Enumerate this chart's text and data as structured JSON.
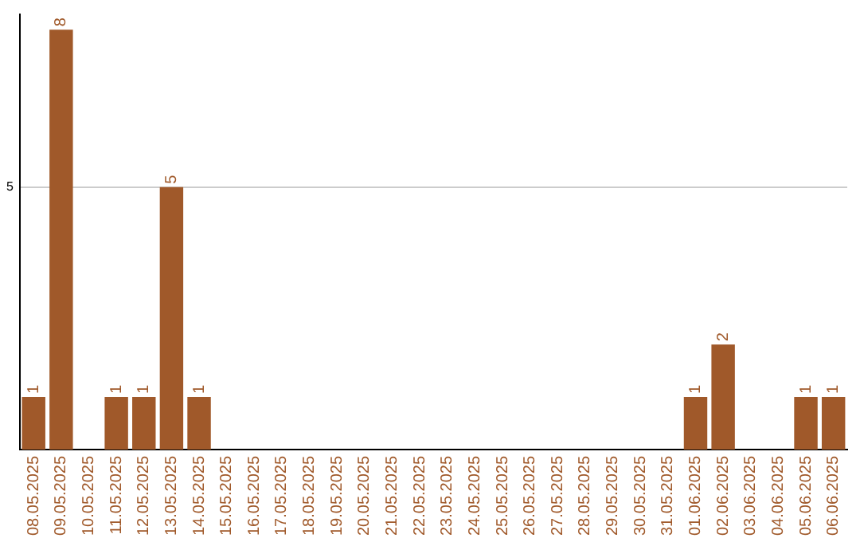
{
  "chart_data": {
    "type": "bar",
    "categories": [
      "08.05.2025",
      "09.05.2025",
      "10.05.2025",
      "11.05.2025",
      "12.05.2025",
      "13.05.2025",
      "14.05.2025",
      "15.05.2025",
      "16.05.2025",
      "17.05.2025",
      "18.05.2025",
      "19.05.2025",
      "20.05.2025",
      "21.05.2025",
      "22.05.2025",
      "23.05.2025",
      "24.05.2025",
      "25.05.2025",
      "26.05.2025",
      "27.05.2025",
      "28.05.2025",
      "29.05.2025",
      "30.05.2025",
      "31.05.2025",
      "01.06.2025",
      "02.06.2025",
      "03.06.2025",
      "04.06.2025",
      "05.06.2025",
      "06.06.2025"
    ],
    "values": [
      1,
      8,
      0,
      1,
      1,
      5,
      1,
      0,
      0,
      0,
      0,
      0,
      0,
      0,
      0,
      0,
      0,
      0,
      0,
      0,
      0,
      0,
      0,
      0,
      1,
      2,
      0,
      0,
      1,
      1
    ],
    "value_labels": [
      "1",
      "8",
      null,
      "1",
      "1",
      "5",
      "1",
      null,
      null,
      null,
      null,
      null,
      null,
      null,
      null,
      null,
      null,
      null,
      null,
      null,
      null,
      null,
      null,
      null,
      "1",
      "2",
      null,
      null,
      "1",
      "1"
    ],
    "color": "#a0592a",
    "ylim": [
      0,
      8.3
    ],
    "yticks": [
      5
    ],
    "grid": "y"
  }
}
